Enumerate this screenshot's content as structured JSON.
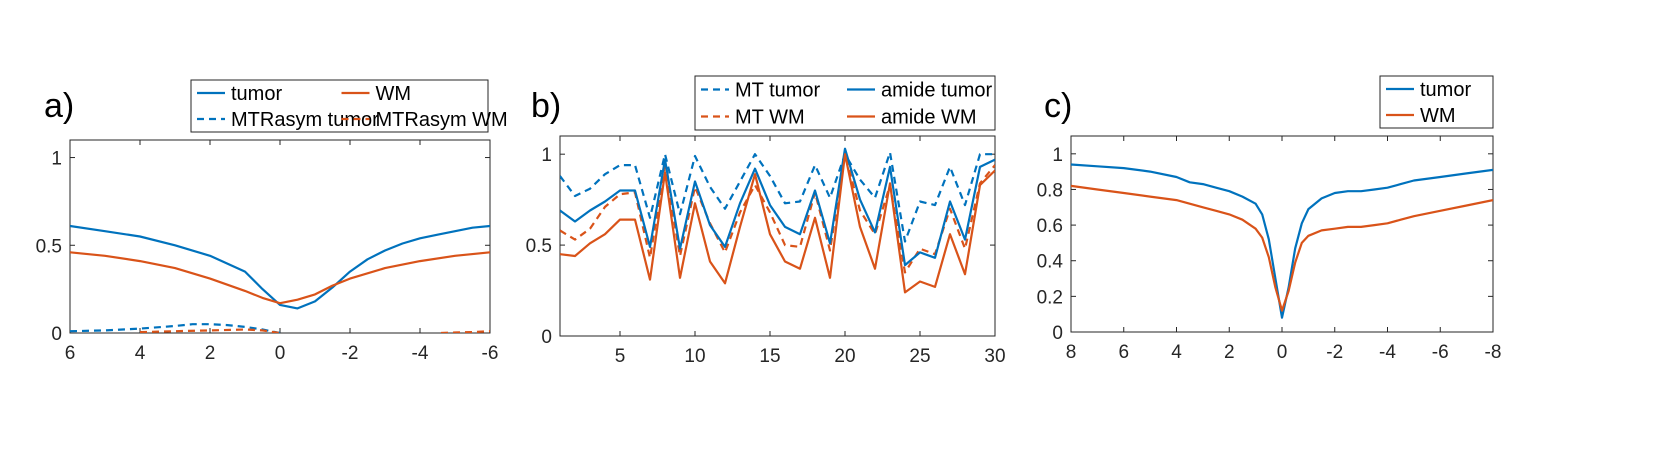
{
  "colors": {
    "blue": "#0072BD",
    "orange": "#D95319"
  },
  "chart_data": [
    {
      "type": "line",
      "panel_label": "a)",
      "xlim": [
        6,
        -6
      ],
      "ylim": [
        0,
        1.1
      ],
      "xticks": [
        6,
        4,
        2,
        0,
        -2,
        -4,
        -6
      ],
      "xtick_labels": [
        "6",
        "4",
        "2",
        "0",
        "-2",
        "-4",
        "-6"
      ],
      "yticks": [
        0,
        0.5,
        1
      ],
      "ytick_labels": [
        "0",
        "0.5",
        "1"
      ],
      "legend": {
        "placement": "top-right",
        "columns": 2
      },
      "series": [
        {
          "name": "tumor",
          "color": "#0072BD",
          "style": "solid",
          "x": [
            6,
            5,
            4,
            3,
            2,
            1,
            0.5,
            0,
            -0.5,
            -1,
            -1.5,
            -2,
            -2.5,
            -3,
            -3.5,
            -4,
            -4.5,
            -5,
            -5.5,
            -6
          ],
          "y": [
            0.61,
            0.58,
            0.55,
            0.5,
            0.44,
            0.35,
            0.25,
            0.16,
            0.14,
            0.18,
            0.26,
            0.35,
            0.42,
            0.47,
            0.51,
            0.54,
            0.56,
            0.58,
            0.6,
            0.61
          ]
        },
        {
          "name": "MTRasym tumor",
          "color": "#0072BD",
          "style": "dash",
          "x": [
            6,
            5,
            4,
            3,
            2.5,
            2,
            1.5,
            1,
            0.5,
            0
          ],
          "y": [
            0.01,
            0.015,
            0.025,
            0.04,
            0.05,
            0.05,
            0.045,
            0.035,
            0.02,
            0.0
          ]
        },
        {
          "name": "WM",
          "color": "#D95319",
          "style": "solid",
          "x": [
            6,
            5,
            4,
            3,
            2,
            1,
            0.5,
            0,
            -0.5,
            -1,
            -1.5,
            -2,
            -3,
            -4,
            -5,
            -6
          ],
          "y": [
            0.46,
            0.44,
            0.41,
            0.37,
            0.31,
            0.24,
            0.2,
            0.17,
            0.19,
            0.22,
            0.27,
            0.31,
            0.37,
            0.41,
            0.44,
            0.46
          ]
        },
        {
          "name": "MTRasym WM",
          "color": "#D95319",
          "style": "dash",
          "x": [
            4,
            3,
            2,
            1,
            0.5,
            0,
            -4.6,
            -5,
            -5.5,
            -6
          ],
          "y": [
            0.005,
            0.01,
            0.015,
            0.02,
            0.015,
            0.0,
            0.0,
            0.003,
            0.005,
            0.01
          ],
          "break_after_index": 5
        }
      ]
    },
    {
      "type": "line",
      "panel_label": "b)",
      "xlim": [
        1,
        30
      ],
      "ylim": [
        0,
        1.1
      ],
      "xticks": [
        5,
        10,
        15,
        20,
        25,
        30
      ],
      "xtick_labels": [
        "5",
        "10",
        "15",
        "20",
        "25",
        "30"
      ],
      "yticks": [
        0,
        0.5,
        1
      ],
      "ytick_labels": [
        "0",
        "0.5",
        "1"
      ],
      "legend": {
        "placement": "top-right",
        "columns": 2
      },
      "series": [
        {
          "name": "MT tumor",
          "color": "#0072BD",
          "style": "dash",
          "x": [
            1,
            2,
            3,
            4,
            5,
            6,
            7,
            8,
            9,
            10,
            11,
            12,
            13,
            14,
            15,
            16,
            17,
            18,
            19,
            20,
            21,
            22,
            23,
            24,
            25,
            26,
            27,
            28,
            29,
            30
          ],
          "y": [
            0.88,
            0.77,
            0.81,
            0.89,
            0.94,
            0.94,
            0.65,
            1.0,
            0.67,
            0.99,
            0.82,
            0.7,
            0.85,
            1.0,
            0.88,
            0.73,
            0.74,
            0.94,
            0.76,
            1.0,
            0.86,
            0.76,
            1.01,
            0.52,
            0.74,
            0.72,
            0.93,
            0.72,
            1.0,
            1.0
          ]
        },
        {
          "name": "MT WM",
          "color": "#D95319",
          "style": "dash",
          "x": [
            1,
            2,
            3,
            4,
            5,
            6,
            7,
            8,
            9,
            10,
            11,
            12,
            13,
            14,
            15,
            16,
            17,
            18,
            19,
            20,
            21,
            22,
            23,
            24,
            25,
            26,
            27,
            28,
            29,
            30
          ],
          "y": [
            0.58,
            0.53,
            0.59,
            0.71,
            0.78,
            0.79,
            0.43,
            0.93,
            0.44,
            0.82,
            0.62,
            0.46,
            0.68,
            0.83,
            0.68,
            0.5,
            0.49,
            0.79,
            0.47,
            1.0,
            0.69,
            0.56,
            0.83,
            0.35,
            0.48,
            0.45,
            0.7,
            0.48,
            0.84,
            0.94
          ]
        },
        {
          "name": "amide tumor",
          "color": "#0072BD",
          "style": "solid",
          "x": [
            1,
            2,
            3,
            4,
            5,
            6,
            7,
            8,
            9,
            10,
            11,
            12,
            13,
            14,
            15,
            16,
            17,
            18,
            19,
            20,
            21,
            22,
            23,
            24,
            25,
            26,
            27,
            28,
            29,
            30
          ],
          "y": [
            0.69,
            0.63,
            0.69,
            0.74,
            0.8,
            0.8,
            0.49,
            0.97,
            0.48,
            0.85,
            0.61,
            0.49,
            0.73,
            0.92,
            0.72,
            0.6,
            0.56,
            0.8,
            0.51,
            1.03,
            0.75,
            0.57,
            0.93,
            0.39,
            0.46,
            0.43,
            0.74,
            0.53,
            0.93,
            0.97
          ]
        },
        {
          "name": "amide WM",
          "color": "#D95319",
          "style": "solid",
          "x": [
            1,
            2,
            3,
            4,
            5,
            6,
            7,
            8,
            9,
            10,
            11,
            12,
            13,
            14,
            15,
            16,
            17,
            18,
            19,
            20,
            21,
            22,
            23,
            24,
            25,
            26,
            27,
            28,
            29,
            30
          ],
          "y": [
            0.45,
            0.44,
            0.51,
            0.56,
            0.64,
            0.64,
            0.31,
            0.9,
            0.32,
            0.73,
            0.41,
            0.29,
            0.6,
            0.89,
            0.56,
            0.41,
            0.37,
            0.65,
            0.32,
            1.0,
            0.6,
            0.37,
            0.84,
            0.24,
            0.3,
            0.27,
            0.56,
            0.34,
            0.83,
            0.91
          ]
        }
      ]
    },
    {
      "type": "line",
      "panel_label": "c)",
      "xlim": [
        8,
        -8
      ],
      "ylim": [
        0,
        1.1
      ],
      "xticks": [
        8,
        6,
        4,
        2,
        0,
        -2,
        -4,
        -6,
        -8
      ],
      "xtick_labels": [
        "8",
        "6",
        "4",
        "2",
        "0",
        "-2",
        "-4",
        "-6",
        "-8"
      ],
      "yticks": [
        0,
        0.2,
        0.4,
        0.6,
        0.8,
        1
      ],
      "ytick_labels": [
        "0",
        "0.2",
        "0.4",
        "0.6",
        "0.8",
        "1"
      ],
      "legend": {
        "placement": "top-right",
        "columns": 1
      },
      "series": [
        {
          "name": "tumor",
          "color": "#0072BD",
          "style": "solid",
          "x": [
            8,
            7,
            6,
            5,
            4,
            3.5,
            3,
            2.5,
            2,
            1.5,
            1,
            0.75,
            0.5,
            0.25,
            0,
            -0.25,
            -0.5,
            -0.75,
            -1,
            -1.5,
            -2,
            -2.5,
            -3,
            -3.5,
            -4,
            -4.5,
            -5,
            -6,
            -7,
            -8
          ],
          "y": [
            0.94,
            0.93,
            0.92,
            0.9,
            0.87,
            0.84,
            0.83,
            0.81,
            0.79,
            0.76,
            0.72,
            0.66,
            0.52,
            0.3,
            0.08,
            0.25,
            0.47,
            0.61,
            0.69,
            0.75,
            0.78,
            0.79,
            0.79,
            0.8,
            0.81,
            0.83,
            0.85,
            0.87,
            0.89,
            0.91
          ]
        },
        {
          "name": "WM",
          "color": "#D95319",
          "style": "solid",
          "x": [
            8,
            7,
            6,
            5,
            4,
            3.5,
            3,
            2.5,
            2,
            1.5,
            1,
            0.75,
            0.5,
            0.25,
            0,
            -0.25,
            -0.5,
            -0.75,
            -1,
            -1.5,
            -2,
            -2.5,
            -3,
            -3.5,
            -4,
            -4.5,
            -5,
            -6,
            -7,
            -8
          ],
          "y": [
            0.82,
            0.8,
            0.78,
            0.76,
            0.74,
            0.72,
            0.7,
            0.68,
            0.66,
            0.63,
            0.58,
            0.53,
            0.42,
            0.25,
            0.12,
            0.23,
            0.39,
            0.5,
            0.54,
            0.57,
            0.58,
            0.59,
            0.59,
            0.6,
            0.61,
            0.63,
            0.65,
            0.68,
            0.71,
            0.74
          ]
        }
      ]
    }
  ]
}
